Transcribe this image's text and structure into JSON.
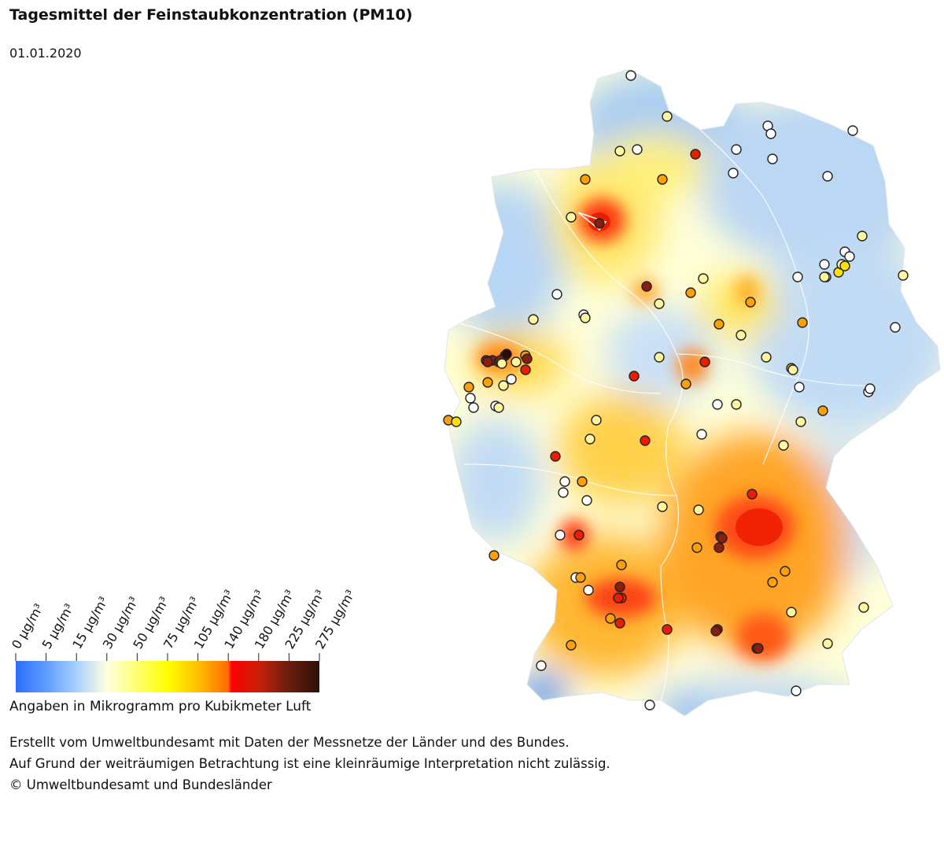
{
  "title": "Tagesmittel der Feinstaubkonzentration (PM10)",
  "date": "01.01.2020",
  "legend": {
    "tick_labels": [
      "0 µg/m³",
      "5 µg/m³",
      "15 µg/m³",
      "30 µg/m³",
      "50 µg/m³",
      "75 µg/m³",
      "105 µg/m³",
      "140 µg/m³",
      "180 µg/m³",
      "225 µg/m³",
      "275 µg/m³"
    ],
    "colors": [
      "#2b6fff",
      "#5f9cff",
      "#a8d0ff",
      "#ffffe0",
      "#ffff00",
      "#ffc000",
      "#ff6a00",
      "#ff0000",
      "#b32a14",
      "#6a1e10",
      "#2a1006"
    ],
    "unit_note": "Angaben in Mikrogramm pro Kubikmeter Luft"
  },
  "credits": [
    "Erstellt vom Umweltbundesamt mit Daten der Messnetze der Länder und des Bundes.",
    "Auf Grund der weiträumigen Betrachtung ist eine kleinräumige Interpretation nicht zulässig.",
    "© Umweltbundesamt und Bundesländer"
  ],
  "map": {
    "hotspot_regions": [
      "Bremen/Hamburg area",
      "Ruhrgebiet",
      "Rhein-Main",
      "Stuttgart",
      "Franken/Nürnberg",
      "Munich"
    ],
    "station_color_classes": {
      "white": "#ffffff",
      "light": "#fff7a0",
      "yellow": "#ffe000",
      "orange": "#ffa000",
      "red": "#ee1c00",
      "darkred": "#8a1e10",
      "black": "#2a0c06"
    }
  }
}
